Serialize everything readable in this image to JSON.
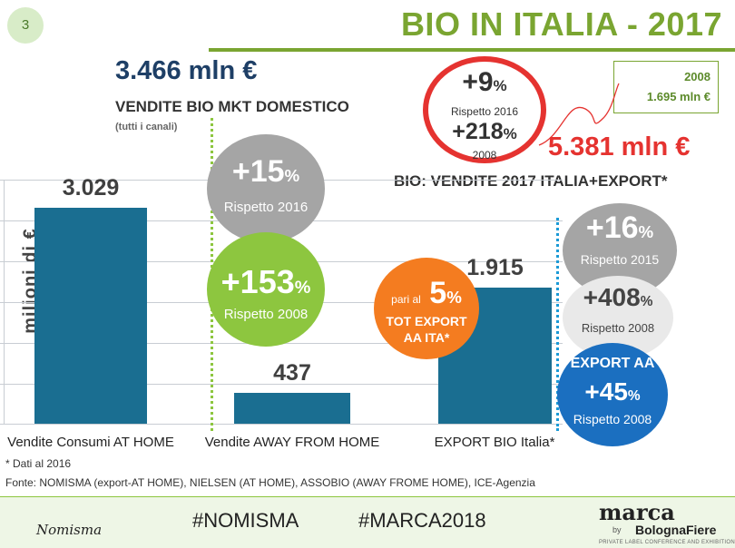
{
  "page_number": "3",
  "title": "BIO IN ITALIA - 2017",
  "domestic": {
    "total": "3.466 mln €",
    "heading": "VENDITE BIO MKT DOMESTICO",
    "note": "(tutti i canali)"
  },
  "box_2008": {
    "year": "2008",
    "value": "1.695 mln €"
  },
  "ring": {
    "pct1": "+9",
    "pct1_unit": "%",
    "label1": "Rispetto 2016",
    "pct2": "+218",
    "pct2_unit": "%",
    "label2": "2008"
  },
  "grand_total": "5.381 mln €",
  "grand_heading": "BIO: VENDITE 2017 ITALIA+EXPORT*",
  "y_axis_label": "milioni di €",
  "circles": {
    "home_vs_2016": {
      "value": "+15",
      "unit": "%",
      "label": "Rispetto 2016"
    },
    "home_vs_2008": {
      "value": "+153",
      "unit": "%",
      "label": "Rispetto 2008"
    },
    "export_share": {
      "prefix": "pari al",
      "value": "5",
      "unit": "%",
      "line1": "TOT EXPORT",
      "line2": "AA ITA*"
    },
    "export_vs_2015": {
      "value": "+16",
      "unit": "%",
      "label": "Rispetto 2015"
    },
    "export_vs_2008": {
      "value": "+408",
      "unit": "%",
      "label": "Rispetto 2008"
    },
    "export_aa": {
      "heading": "EXPORT AA",
      "value": "+45",
      "unit": "%",
      "label": "Rispetto 2008"
    }
  },
  "chart_data": {
    "type": "bar",
    "title": "BIO: VENDITE 2017 ITALIA+EXPORT*",
    "ylabel": "milioni di €",
    "xlabel": "",
    "categories": [
      "Vendite Consumi AT HOME",
      "Vendite AWAY FROM HOME",
      "EXPORT BIO Italia*"
    ],
    "values": [
      3029,
      437,
      1915
    ],
    "value_labels": [
      "3.029",
      "437",
      "1.915"
    ],
    "ylim": [
      0,
      3500
    ],
    "grid": true
  },
  "footnote": "* Dati al 2016",
  "source": "Fonte: NOMISMA (export-AT HOME), NIELSEN (AT HOME), ASSOBIO (AWAY FROME HOME), ICE-Agenzia",
  "footer": {
    "logo_left": "Nomisma",
    "hashtag1": "#NOMISMA",
    "hashtag2": "#MARCA2018",
    "logo_right": "marca",
    "logo_right_by": "by",
    "logo_right_sub": "BolognaFiere",
    "logo_right_tag": "PRIVATE LABEL CONFERENCE AND EXHIBITION"
  },
  "colors": {
    "accent_green": "#7aa531",
    "bar_blue": "#1a6e91",
    "red": "#e53330",
    "orange": "#f47c20",
    "grey_circle": "#a5a5a5",
    "green_circle": "#8dc63f",
    "blue_circle": "#1b6fc0"
  }
}
